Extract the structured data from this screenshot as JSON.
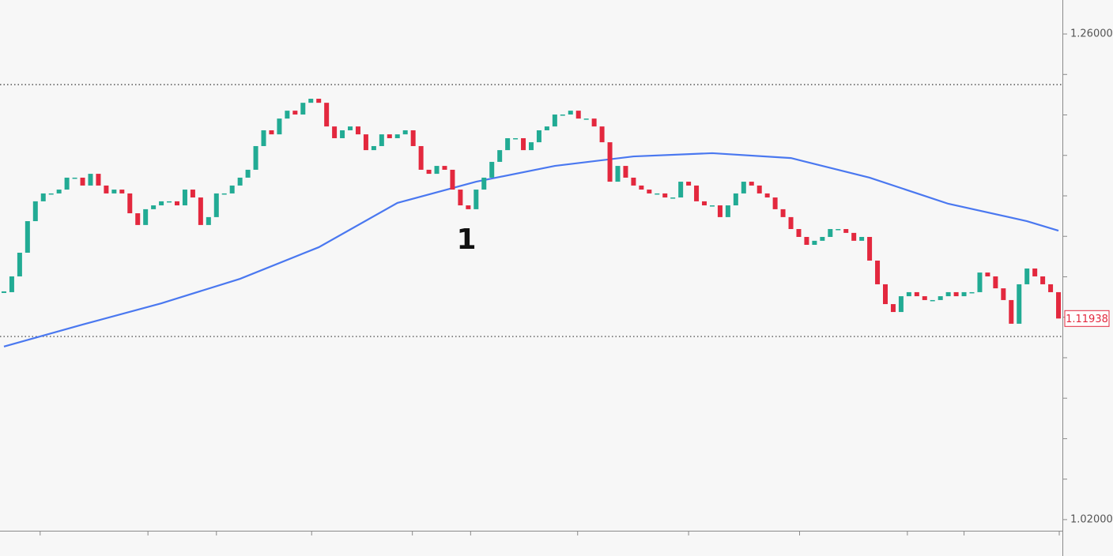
{
  "chart_data": {
    "type": "candlestick",
    "values": [
      1.1324,
      1.1402,
      1.1519,
      1.1675,
      1.1773,
      1.1812,
      1.1812,
      1.1831,
      1.189,
      1.189,
      1.1851,
      1.1909,
      1.1851,
      1.1812,
      1.1831,
      1.1812,
      1.1714,
      1.1656,
      1.1734,
      1.1753,
      1.1773,
      1.1773,
      1.1753,
      1.1831,
      1.1792,
      1.1656,
      1.1695,
      1.1812,
      1.1812,
      1.1851,
      1.189,
      1.1929,
      1.2046,
      1.2124,
      1.2104,
      1.2182,
      1.2221,
      1.2202,
      1.226,
      1.228,
      1.226,
      1.2143,
      1.2085,
      1.2124,
      1.2143,
      1.2104,
      1.2026,
      1.2046,
      1.2104,
      1.2085,
      1.2104,
      1.2124,
      1.2046,
      1.1929,
      1.1909,
      1.1948,
      1.1929,
      1.1831,
      1.1753,
      1.1734,
      1.1831,
      1.189,
      1.1968,
      1.2026,
      1.2085,
      1.2085,
      1.2026,
      1.2065,
      1.2124,
      1.2143,
      1.2202,
      1.2202,
      1.2221,
      1.2182,
      1.2182,
      1.2143,
      1.2065,
      1.187,
      1.1948,
      1.189,
      1.1851,
      1.1831,
      1.1812,
      1.1812,
      1.1792,
      1.1792,
      1.187,
      1.1851,
      1.1773,
      1.1753,
      1.1753,
      1.1695,
      1.1753,
      1.1812,
      1.187,
      1.1851,
      1.1812,
      1.1792,
      1.1734,
      1.1695,
      1.1636,
      1.1597,
      1.1558,
      1.1578,
      1.1597,
      1.1636,
      1.1636,
      1.1617,
      1.1578,
      1.1597,
      1.148,
      1.1363,
      1.1265,
      1.1226,
      1.1304,
      1.1324,
      1.1304,
      1.1285,
      1.1285,
      1.1304,
      1.1324,
      1.1304,
      1.1324,
      1.1324,
      1.1421,
      1.1402,
      1.1343,
      1.1285,
      1.1168,
      1.1363,
      1.1441,
      1.1402,
      1.1363,
      1.1324,
      1.11938
    ],
    "up_color": "#22ab94",
    "down_color": "#e3283e",
    "ma": {
      "color": "#4a78f0",
      "x": [
        0,
        10,
        20,
        30,
        40,
        50,
        60,
        70,
        80,
        90,
        100,
        110,
        120,
        130,
        134
      ],
      "values": [
        1.1055,
        1.1164,
        1.1269,
        1.139,
        1.1546,
        1.1765,
        1.187,
        1.1948,
        1.1995,
        1.2011,
        1.1987,
        1.189,
        1.1761,
        1.1675,
        1.1628
      ]
    },
    "levels": [
      1.235,
      1.1105
    ],
    "annotation": "1",
    "xlim": [
      -0.5,
      134.5
    ],
    "ylim": [
      1.0145,
      1.2768
    ],
    "yticks": [
      {
        "value": 1.26,
        "label": "1.26000"
      },
      {
        "value": 1.02,
        "label": "1.02000"
      }
    ],
    "minor_yticks": [
      1.24,
      1.22,
      1.2,
      1.18,
      1.16,
      1.14,
      1.12,
      1.1,
      1.08,
      1.06,
      1.04
    ],
    "x_tick_marks": [
      4.6,
      18.3,
      27.0,
      39.1,
      51.9,
      59.3,
      72.9,
      87.0,
      101.1,
      114.8,
      122.0,
      134.1
    ]
  }
}
